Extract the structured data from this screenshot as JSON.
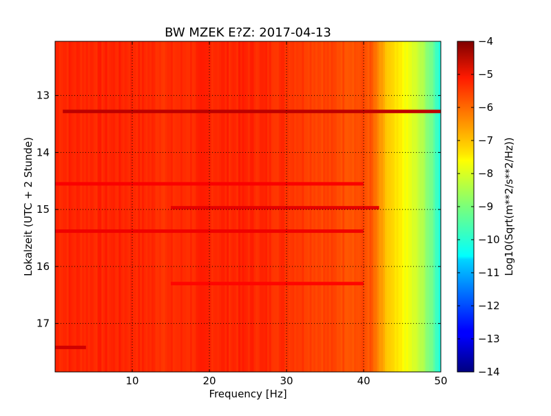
{
  "chart_data": {
    "type": "heatmap",
    "title": "BW MZEK E?Z: 2017-04-13",
    "xlabel": "Frequency [Hz]",
    "ylabel": "Lokalzeit (UTC + 2 Stunde)",
    "xlim": [
      0,
      50
    ],
    "ylim": [
      17.85,
      12.05
    ],
    "xticks": [
      10,
      20,
      30,
      40,
      50
    ],
    "xtick_labels": [
      "10",
      "20",
      "30",
      "40",
      "50"
    ],
    "yticks": [
      13,
      14,
      15,
      16,
      17
    ],
    "ytick_labels": [
      "13",
      "14",
      "15",
      "16",
      "17"
    ],
    "grid": true,
    "colormap": "jet",
    "colorbar": {
      "label": "Log10(Sqrt(m**2/s**2/Hz))",
      "range": [
        -14,
        -4
      ],
      "ticks": [
        -4,
        -5,
        -6,
        -7,
        -8,
        -9,
        -10,
        -11,
        -12,
        -13,
        -14
      ],
      "tick_labels": [
        "−4",
        "−5",
        "−6",
        "−7",
        "−8",
        "−9",
        "−10",
        "−11",
        "−12",
        "−13",
        "−14"
      ]
    },
    "frequency_profile": {
      "x": [
        0,
        5,
        10,
        15,
        20,
        25,
        30,
        35,
        38,
        40,
        41,
        42,
        43,
        44,
        45,
        46,
        47,
        48,
        49,
        50
      ],
      "values": [
        -5.6,
        -5.6,
        -5.6,
        -5.7,
        -5.6,
        -5.6,
        -5.7,
        -5.9,
        -6.0,
        -6.0,
        -6.1,
        -6.7,
        -7.2,
        -7.5,
        -7.7,
        -8.0,
        -8.3,
        -8.7,
        -9.3,
        -10.0
      ]
    },
    "bands": [
      {
        "time": 13.28,
        "fmin": 1,
        "fmax": 50,
        "value": -4.6
      },
      {
        "time": 14.55,
        "fmin": 0,
        "fmax": 40,
        "value": -5.2
      },
      {
        "time": 14.97,
        "fmin": 15,
        "fmax": 42,
        "value": -5.0
      },
      {
        "time": 15.38,
        "fmin": 0,
        "fmax": 40,
        "value": -5.1
      },
      {
        "time": 16.3,
        "fmin": 15,
        "fmax": 40,
        "value": -5.3
      },
      {
        "time": 17.42,
        "fmin": 0,
        "fmax": 4,
        "value": -4.8
      }
    ]
  }
}
